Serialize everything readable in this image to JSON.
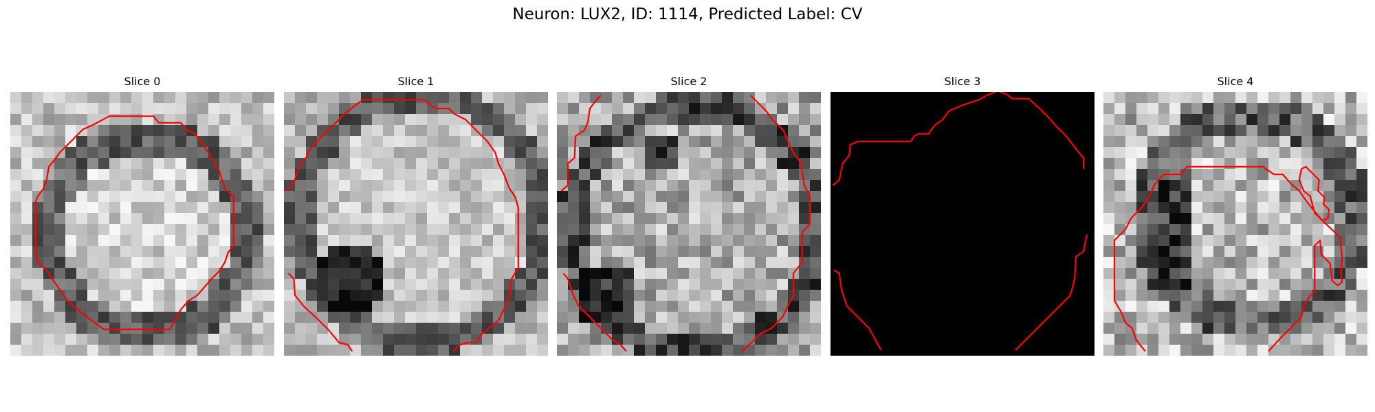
{
  "figure": {
    "suptitle": "Neuron: LUX2, ID: 1114, Predicted Label: CV"
  },
  "slices": [
    {
      "title": "Slice 0"
    },
    {
      "title": "Slice 1"
    },
    {
      "title": "Slice 2"
    },
    {
      "title": "Slice 3"
    },
    {
      "title": "Slice 4"
    }
  ],
  "colors": {
    "contour": "#ff0000",
    "background": "#ffffff",
    "blank_slice": "#000000"
  }
}
